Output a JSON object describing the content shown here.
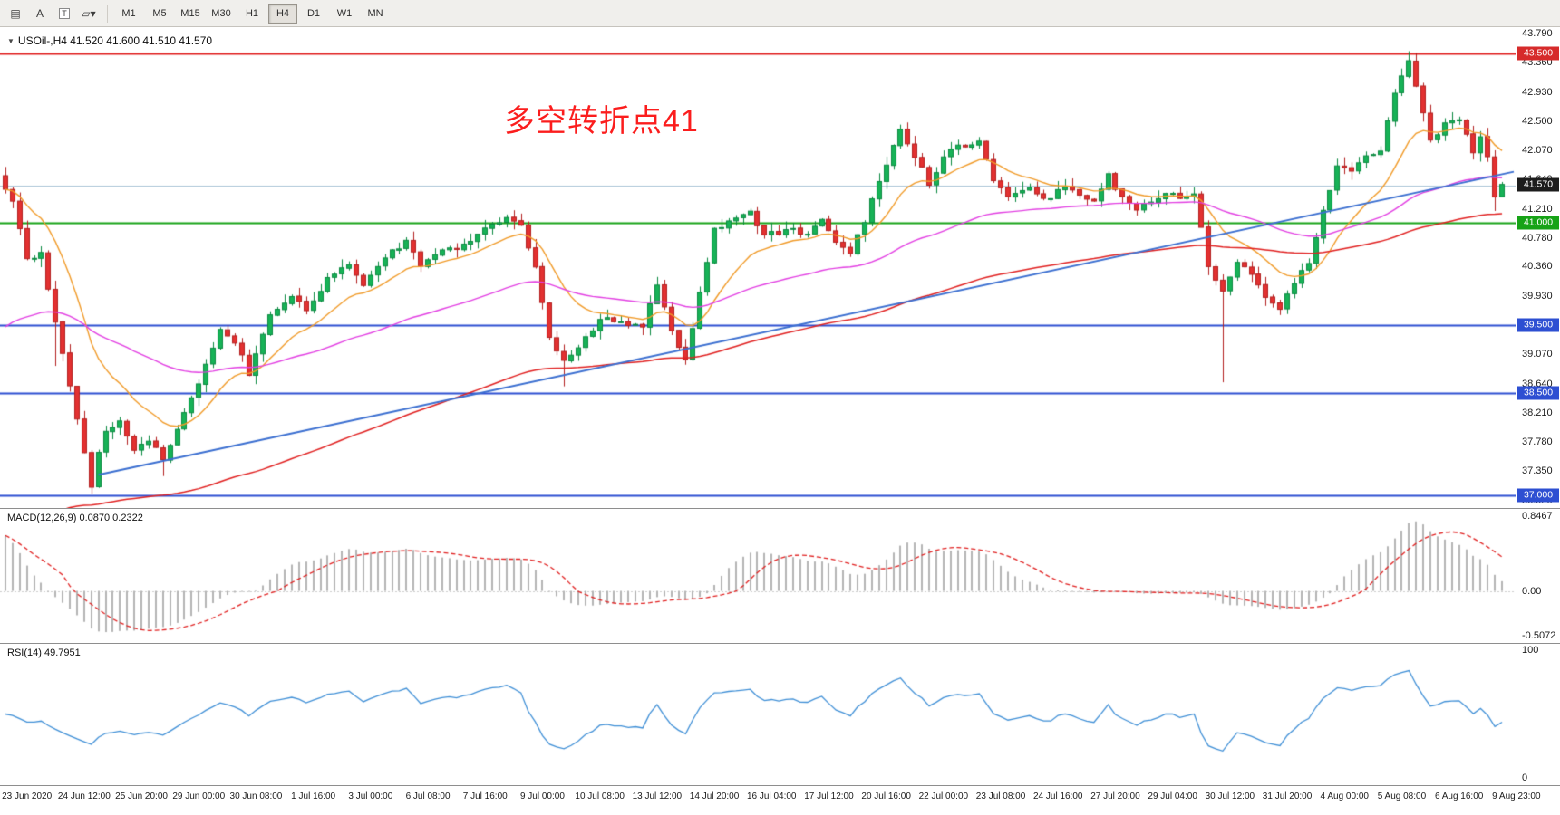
{
  "toolbar": {
    "icons": [
      {
        "name": "bar-chart-icon",
        "glyph": "▤"
      },
      {
        "name": "cursor-tool-icon",
        "glyph": "A"
      },
      {
        "name": "text-tool-icon",
        "glyph": "T"
      },
      {
        "name": "shapes-dropdown-icon",
        "glyph": "▱▾"
      }
    ],
    "timeframes": [
      "M1",
      "M5",
      "M15",
      "M30",
      "H1",
      "H4",
      "D1",
      "W1",
      "MN"
    ],
    "active_timeframe": "H4"
  },
  "chart": {
    "collapse_icon": "▼",
    "title": "USOil-,H4 41.520 41.600 41.510 41.570",
    "annotation": {
      "text": "多空转折点41",
      "color": "#fb1d1d"
    }
  },
  "chart_data": {
    "type": "candlestick",
    "symbol": "USOil-",
    "timeframe": "H4",
    "ohlc_display": {
      "open": "41.520",
      "high": "41.600",
      "low": "41.510",
      "close": "41.570"
    },
    "price_axis": {
      "pmax": 43.87,
      "pmin": 36.81,
      "labels": [
        "43.790",
        "43.360",
        "42.930",
        "42.500",
        "42.070",
        "41.640",
        "41.210",
        "40.780",
        "40.360",
        "39.930",
        "39.500",
        "39.070",
        "38.640",
        "38.210",
        "37.780",
        "37.350",
        "36.920"
      ]
    },
    "badges": [
      {
        "text": "43.500",
        "price": 43.5,
        "bg": "#d62b2b"
      },
      {
        "text": "41.570",
        "price": 41.57,
        "bg": "#1c1c1c"
      },
      {
        "text": "41.000",
        "price": 41.0,
        "bg": "#17a317"
      },
      {
        "text": "39.500",
        "price": 39.5,
        "bg": "#2d4fd2"
      },
      {
        "text": "38.500",
        "price": 38.5,
        "bg": "#2d4fd2"
      },
      {
        "text": "37.000",
        "price": 37.0,
        "bg": "#2d4fd2"
      }
    ],
    "hlines": [
      {
        "price": 43.5,
        "color": "#e02020",
        "width": 2
      },
      {
        "price": 41.55,
        "color": "#a9c3d6",
        "width": 1
      },
      {
        "price": 41.0,
        "color": "#17a317",
        "width": 2
      },
      {
        "price": 39.5,
        "color": "#2d4fd2",
        "width": 2
      },
      {
        "price": 38.5,
        "color": "#2d4fd2",
        "width": 2
      },
      {
        "price": 37.0,
        "color": "#2d4fd2",
        "width": 2
      }
    ],
    "trendline": {
      "from_index": 13,
      "from_price": 37.3,
      "to_index": 209,
      "to_price": 41.72,
      "color": "#3a6ed0",
      "width": 2,
      "extend_right": true
    },
    "candles": {
      "count": 210,
      "up_fill": "#17b257",
      "up_border": "#0b8a41",
      "down_fill": "#e23131",
      "down_border": "#b32020",
      "close_anchors": [
        [
          0,
          41.5
        ],
        [
          1,
          41.3
        ],
        [
          3,
          40.45
        ],
        [
          5,
          40.6
        ],
        [
          7,
          39.5
        ],
        [
          9,
          38.6
        ],
        [
          11,
          37.6
        ],
        [
          12,
          37.15
        ],
        [
          13,
          37.6
        ],
        [
          14,
          37.95
        ],
        [
          16,
          38.1
        ],
        [
          18,
          37.65
        ],
        [
          20,
          37.8
        ],
        [
          22,
          37.55
        ],
        [
          24,
          38.0
        ],
        [
          27,
          38.65
        ],
        [
          30,
          39.4
        ],
        [
          32,
          39.25
        ],
        [
          34,
          38.8
        ],
        [
          37,
          39.65
        ],
        [
          40,
          39.95
        ],
        [
          42,
          39.7
        ],
        [
          45,
          40.2
        ],
        [
          48,
          40.4
        ],
        [
          50,
          40.1
        ],
        [
          53,
          40.5
        ],
        [
          56,
          40.75
        ],
        [
          58,
          40.4
        ],
        [
          61,
          40.6
        ],
        [
          64,
          40.65
        ],
        [
          67,
          40.95
        ],
        [
          70,
          41.1
        ],
        [
          72,
          41.0
        ],
        [
          74,
          40.35
        ],
        [
          76,
          39.3
        ],
        [
          78,
          38.95
        ],
        [
          80,
          39.15
        ],
        [
          83,
          39.6
        ],
        [
          86,
          39.55
        ],
        [
          89,
          39.5
        ],
        [
          91,
          40.05
        ],
        [
          93,
          39.4
        ],
        [
          95,
          39.0
        ],
        [
          97,
          39.95
        ],
        [
          99,
          40.9
        ],
        [
          102,
          41.1
        ],
        [
          104,
          41.15
        ],
        [
          106,
          40.8
        ],
        [
          109,
          40.9
        ],
        [
          112,
          40.85
        ],
        [
          114,
          41.05
        ],
        [
          116,
          40.75
        ],
        [
          118,
          40.6
        ],
        [
          120,
          41.05
        ],
        [
          122,
          41.65
        ],
        [
          125,
          42.35
        ],
        [
          127,
          42.0
        ],
        [
          129,
          41.6
        ],
        [
          131,
          41.95
        ],
        [
          133,
          42.15
        ],
        [
          136,
          42.2
        ],
        [
          138,
          41.65
        ],
        [
          140,
          41.4
        ],
        [
          143,
          41.5
        ],
        [
          146,
          41.35
        ],
        [
          148,
          41.55
        ],
        [
          150,
          41.4
        ],
        [
          152,
          41.35
        ],
        [
          154,
          41.7
        ],
        [
          156,
          41.35
        ],
        [
          158,
          41.2
        ],
        [
          160,
          41.3
        ],
        [
          162,
          41.45
        ],
        [
          164,
          41.35
        ],
        [
          166,
          41.4
        ],
        [
          168,
          40.4
        ],
        [
          170,
          40.0
        ],
        [
          172,
          40.4
        ],
        [
          174,
          40.25
        ],
        [
          176,
          39.95
        ],
        [
          178,
          39.7
        ],
        [
          180,
          40.15
        ],
        [
          182,
          40.45
        ],
        [
          184,
          41.15
        ],
        [
          186,
          41.8
        ],
        [
          188,
          41.75
        ],
        [
          190,
          42.0
        ],
        [
          192,
          42.1
        ],
        [
          194,
          42.95
        ],
        [
          196,
          43.4
        ],
        [
          198,
          42.6
        ],
        [
          199,
          42.2
        ],
        [
          201,
          42.45
        ],
        [
          203,
          42.55
        ],
        [
          205,
          42.0
        ],
        [
          206,
          42.3
        ],
        [
          207,
          41.95
        ],
        [
          208,
          41.35
        ],
        [
          209,
          41.57
        ]
      ],
      "wick_overrides": [
        {
          "i": 7,
          "low": 38.9
        },
        {
          "i": 12,
          "low": 37.02
        },
        {
          "i": 22,
          "low": 37.28
        },
        {
          "i": 78,
          "low": 38.6
        },
        {
          "i": 170,
          "low": 38.66
        },
        {
          "i": 196,
          "high": 43.53
        },
        {
          "i": 208,
          "low": 41.18
        }
      ]
    },
    "moving_averages": [
      {
        "name": "fast-ma",
        "period": 13,
        "seed": null,
        "color": "#f09a28",
        "width": 1.4
      },
      {
        "name": "medium-ma",
        "period": 55,
        "seed": 39.4,
        "color": "#e23fe2",
        "width": 1.4
      },
      {
        "name": "slow-ma",
        "period": 120,
        "seed": 36.2,
        "color": "#e02020",
        "width": 1.5
      }
    ],
    "time_labels": [
      "23 Jun 2020",
      "24 Jun 12:00",
      "25 Jun 20:00",
      "29 Jun 00:00",
      "30 Jun 08:00",
      "1 Jul 16:00",
      "3 Jul 00:00",
      "6 Jul 08:00",
      "7 Jul 16:00",
      "9 Jul 00:00",
      "10 Jul 08:00",
      "13 Jul 12:00",
      "14 Jul 20:00",
      "16 Jul 04:00",
      "17 Jul 12:00",
      "20 Jul 16:00",
      "22 Jul 00:00",
      "23 Jul 08:00",
      "24 Jul 16:00",
      "27 Jul 20:00",
      "29 Jul 04:00",
      "30 Jul 12:00",
      "31 Jul 20:00",
      "4 Aug 00:00",
      "5 Aug 08:00",
      "6 Aug 16:00",
      "9 Aug 23:00"
    ],
    "macd": {
      "label": "MACD(12,26,9) 0.0870 0.2322",
      "fast": 12,
      "slow": 26,
      "signal": 9,
      "main_value": 0.087,
      "signal_value": 0.2322,
      "axis_max": 0.8467,
      "axis_min": -0.5072,
      "axis_labels": [
        "0.8467",
        "0.00",
        "-0.5072"
      ],
      "histogram_color": "#b4b4b4",
      "signal_color": "#e02020"
    },
    "rsi": {
      "label": "RSI(14) 49.7951",
      "period": 14,
      "value": 49.7951,
      "axis_max": 100,
      "axis_min": 0,
      "axis_labels": [
        "100",
        "0"
      ],
      "color": "#3f8fd6"
    }
  }
}
